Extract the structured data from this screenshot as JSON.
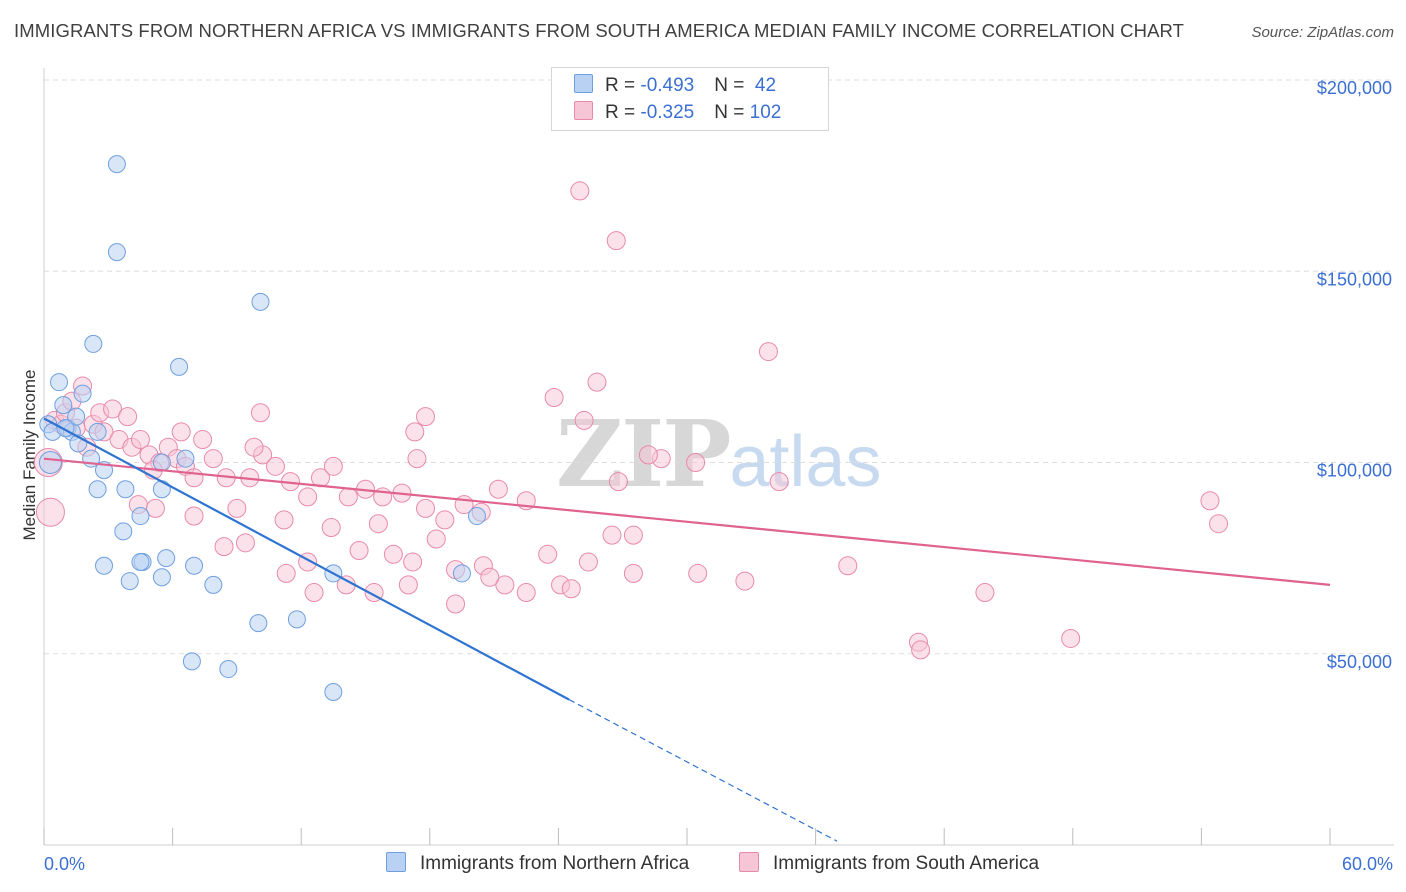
{
  "header": {
    "title": "IMMIGRANTS FROM NORTHERN AFRICA VS IMMIGRANTS FROM SOUTH AMERICA MEDIAN FAMILY INCOME CORRELATION CHART",
    "source": "Source: ZipAtlas.com"
  },
  "watermark": {
    "zip": "ZIP",
    "atlas": "atlas"
  },
  "legend": {
    "row1": {
      "r_label": "R = ",
      "r_value": "-0.493",
      "n_label": "N = ",
      "n_value": " 42"
    },
    "row2": {
      "r_label": "R = ",
      "r_value": "-0.325",
      "n_label": "N = ",
      "n_value": "102"
    }
  },
  "colors": {
    "blue_fill": "#b9d1f3",
    "blue_stroke": "#6f9fe0",
    "blue_line": "#2f74d0",
    "pink_fill": "#f7c6d6",
    "pink_stroke": "#e88aab",
    "pink_line": "#e0628f",
    "tick_label": "#3b6fd4",
    "grid": "#dddddd"
  },
  "chart_data": {
    "type": "scatter",
    "title": "IMMIGRANTS FROM NORTHERN AFRICA VS IMMIGRANTS FROM SOUTH AMERICA MEDIAN FAMILY INCOME CORRELATION CHART",
    "xlabel": "",
    "ylabel": "Median Family Income",
    "xlim": [
      0,
      60
    ],
    "ylim": [
      0,
      200000
    ],
    "x_tick_labels": [
      "0.0%",
      "60.0%"
    ],
    "y_ticks": [
      50000,
      100000,
      150000,
      200000
    ],
    "y_tick_labels": [
      "$50,000",
      "$100,000",
      "$150,000",
      "$200,000"
    ],
    "grid": true,
    "legend_position": "bottom",
    "series": [
      {
        "name": "Immigrants from Northern Africa",
        "color": "#6f9fe0",
        "points": [
          [
            0.2,
            110000
          ],
          [
            0.4,
            108000
          ],
          [
            0.3,
            100000
          ],
          [
            0.7,
            121000
          ],
          [
            0.9,
            115000
          ],
          [
            1.1,
            109000
          ],
          [
            1.3,
            108000
          ],
          [
            1.5,
            112000
          ],
          [
            1.6,
            105000
          ],
          [
            1.8,
            118000
          ],
          [
            2.2,
            101000
          ],
          [
            2.5,
            108000
          ],
          [
            3.4,
            178000
          ],
          [
            3.4,
            155000
          ],
          [
            2.3,
            131000
          ],
          [
            6.3,
            125000
          ],
          [
            10.1,
            142000
          ],
          [
            2.5,
            93000
          ],
          [
            2.8,
            98000
          ],
          [
            3.8,
            93000
          ],
          [
            5.5,
            100000
          ],
          [
            5.5,
            93000
          ],
          [
            4.5,
            86000
          ],
          [
            3.7,
            82000
          ],
          [
            2.8,
            73000
          ],
          [
            4.6,
            74000
          ],
          [
            5.7,
            75000
          ],
          [
            4.0,
            69000
          ],
          [
            5.5,
            70000
          ],
          [
            7.0,
            73000
          ],
          [
            7.9,
            68000
          ],
          [
            10.0,
            58000
          ],
          [
            11.8,
            59000
          ],
          [
            6.9,
            48000
          ],
          [
            8.6,
            46000
          ],
          [
            13.5,
            40000
          ],
          [
            13.5,
            71000
          ],
          [
            19.5,
            71000
          ],
          [
            20.2,
            86000
          ],
          [
            4.5,
            74000
          ],
          [
            1.0,
            109000
          ],
          [
            6.6,
            101000
          ]
        ]
      },
      {
        "name": "Immigrants from South America",
        "color": "#e88aab",
        "points": [
          [
            0.2,
            100000
          ],
          [
            0.3,
            87000
          ],
          [
            0.5,
            111000
          ],
          [
            0.8,
            110000
          ],
          [
            1.0,
            113000
          ],
          [
            1.3,
            116000
          ],
          [
            1.5,
            109000
          ],
          [
            1.8,
            120000
          ],
          [
            2.0,
            104000
          ],
          [
            2.3,
            110000
          ],
          [
            2.6,
            113000
          ],
          [
            2.8,
            108000
          ],
          [
            3.2,
            114000
          ],
          [
            3.5,
            106000
          ],
          [
            3.9,
            112000
          ],
          [
            4.1,
            104000
          ],
          [
            4.5,
            106000
          ],
          [
            4.9,
            102000
          ],
          [
            5.4,
            100000
          ],
          [
            5.8,
            104000
          ],
          [
            6.2,
            101000
          ],
          [
            6.6,
            99000
          ],
          [
            7.0,
            96000
          ],
          [
            7.4,
            106000
          ],
          [
            7.9,
            101000
          ],
          [
            8.5,
            96000
          ],
          [
            9.0,
            88000
          ],
          [
            9.6,
            96000
          ],
          [
            10.2,
            102000
          ],
          [
            10.8,
            99000
          ],
          [
            11.5,
            95000
          ],
          [
            12.3,
            91000
          ],
          [
            12.9,
            96000
          ],
          [
            13.5,
            99000
          ],
          [
            14.2,
            91000
          ],
          [
            15.0,
            93000
          ],
          [
            15.8,
            91000
          ],
          [
            16.7,
            92000
          ],
          [
            17.8,
            88000
          ],
          [
            18.7,
            85000
          ],
          [
            19.6,
            89000
          ],
          [
            20.4,
            87000
          ],
          [
            21.2,
            93000
          ],
          [
            22.5,
            90000
          ],
          [
            4.4,
            89000
          ],
          [
            5.2,
            88000
          ],
          [
            7.0,
            86000
          ],
          [
            8.4,
            78000
          ],
          [
            9.4,
            79000
          ],
          [
            11.2,
            85000
          ],
          [
            12.3,
            74000
          ],
          [
            13.4,
            83000
          ],
          [
            14.7,
            77000
          ],
          [
            15.6,
            84000
          ],
          [
            16.3,
            76000
          ],
          [
            17.2,
            74000
          ],
          [
            18.3,
            80000
          ],
          [
            19.2,
            72000
          ],
          [
            20.5,
            73000
          ],
          [
            21.5,
            68000
          ],
          [
            22.5,
            66000
          ],
          [
            24.1,
            68000
          ],
          [
            25.4,
            74000
          ],
          [
            26.5,
            81000
          ],
          [
            27.5,
            81000
          ],
          [
            9.8,
            104000
          ],
          [
            11.3,
            71000
          ],
          [
            12.6,
            66000
          ],
          [
            14.1,
            68000
          ],
          [
            15.4,
            66000
          ],
          [
            17.0,
            68000
          ],
          [
            19.2,
            63000
          ],
          [
            20.8,
            70000
          ],
          [
            23.5,
            76000
          ],
          [
            24.6,
            67000
          ],
          [
            27.5,
            71000
          ],
          [
            25.8,
            121000
          ],
          [
            26.8,
            95000
          ],
          [
            28.8,
            101000
          ],
          [
            30.5,
            71000
          ],
          [
            32.7,
            69000
          ],
          [
            34.3,
            95000
          ],
          [
            37.5,
            73000
          ],
          [
            40.8,
            53000
          ],
          [
            40.9,
            51000
          ],
          [
            43.9,
            66000
          ],
          [
            47.9,
            54000
          ],
          [
            54.4,
            90000
          ],
          [
            54.8,
            84000
          ],
          [
            26.7,
            158000
          ],
          [
            25.0,
            171000
          ],
          [
            33.8,
            129000
          ],
          [
            23.8,
            117000
          ],
          [
            25.2,
            111000
          ],
          [
            17.8,
            112000
          ],
          [
            17.3,
            108000
          ],
          [
            10.1,
            113000
          ],
          [
            6.4,
            108000
          ],
          [
            28.2,
            102000
          ],
          [
            17.4,
            101000
          ],
          [
            30.4,
            100000
          ],
          [
            5.1,
            98000
          ]
        ]
      }
    ],
    "trend_lines": [
      {
        "series": "Immigrants from Northern Africa",
        "x": [
          0,
          24.5
        ],
        "y": [
          111500,
          38000
        ],
        "extension_x": [
          24.5,
          37
        ],
        "extension_y": [
          38000,
          1000
        ]
      },
      {
        "series": "Immigrants from South America",
        "x": [
          0,
          60
        ],
        "y": [
          101000,
          68000
        ]
      }
    ]
  }
}
